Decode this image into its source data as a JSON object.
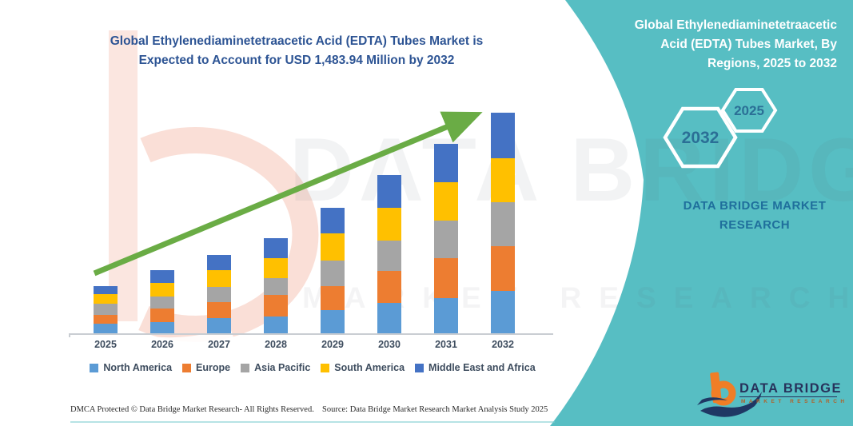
{
  "title": {
    "lines": [
      "Global Ethylenediaminetetraacetic Acid (EDTA) Tubes Market is",
      "Expected to Account for USD 1,483.94 Million by 2032"
    ],
    "color": "#2D5494"
  },
  "side_panel": {
    "heading_lines": [
      "Global Ethylenediaminetetraacetic",
      "Acid (EDTA) Tubes Market, By",
      "Regions, 2025 to 2032"
    ],
    "hexagons": [
      {
        "label": "2032"
      },
      {
        "label": "2025"
      }
    ],
    "brand_lines": [
      "DATA BRIDGE MARKET",
      "RESEARCH"
    ],
    "background_color": "#57BEC3",
    "text_color": "#1f6f9c"
  },
  "watermark": {
    "line1": "DATA BRIDGE",
    "line2": "MARKET RESEARCH"
  },
  "logo": {
    "name": "DATA BRIDGE",
    "subtitle": "MARKET RESEARCH"
  },
  "footer": {
    "left": "DMCA Protected © Data Bridge Market Research-  All Rights Reserved.",
    "right": "Source: Data Bridge Market Research  Market Analysis Study 2025"
  },
  "chart_data": {
    "type": "bar",
    "stacked": true,
    "unit": "USD Million",
    "categories": [
      "2025",
      "2026",
      "2027",
      "2028",
      "2029",
      "2030",
      "2031",
      "2032"
    ],
    "series": [
      {
        "name": "North America",
        "color": "#5B9BD5",
        "values": [
          64,
          77,
          104,
          113,
          158,
          202,
          238,
          283
        ]
      },
      {
        "name": "Europe",
        "color": "#ED7D31",
        "values": [
          61,
          90,
          108,
          143,
          161,
          215,
          269,
          305
        ]
      },
      {
        "name": "Asia Pacific",
        "color": "#A5A5A5",
        "values": [
          72,
          81,
          102,
          117,
          170,
          206,
          251,
          296
        ]
      },
      {
        "name": "South America",
        "color": "#FFC000",
        "values": [
          68,
          90,
          113,
          134,
          185,
          219,
          260,
          296
        ]
      },
      {
        "name": "Middle East and Africa",
        "color": "#4472C4",
        "values": [
          52,
          87,
          100,
          133,
          170,
          222,
          256,
          304
        ]
      }
    ],
    "totals": [
      317,
      425,
      527,
      640,
      844,
      1064,
      1274,
      1484
    ],
    "ylim": [
      0,
      1550
    ],
    "gridlines": false,
    "y_axis_labels": false,
    "legend_position": "bottom",
    "trend_arrow_color": "#6AAC45",
    "highlight_value_2032": "1,483.94"
  }
}
